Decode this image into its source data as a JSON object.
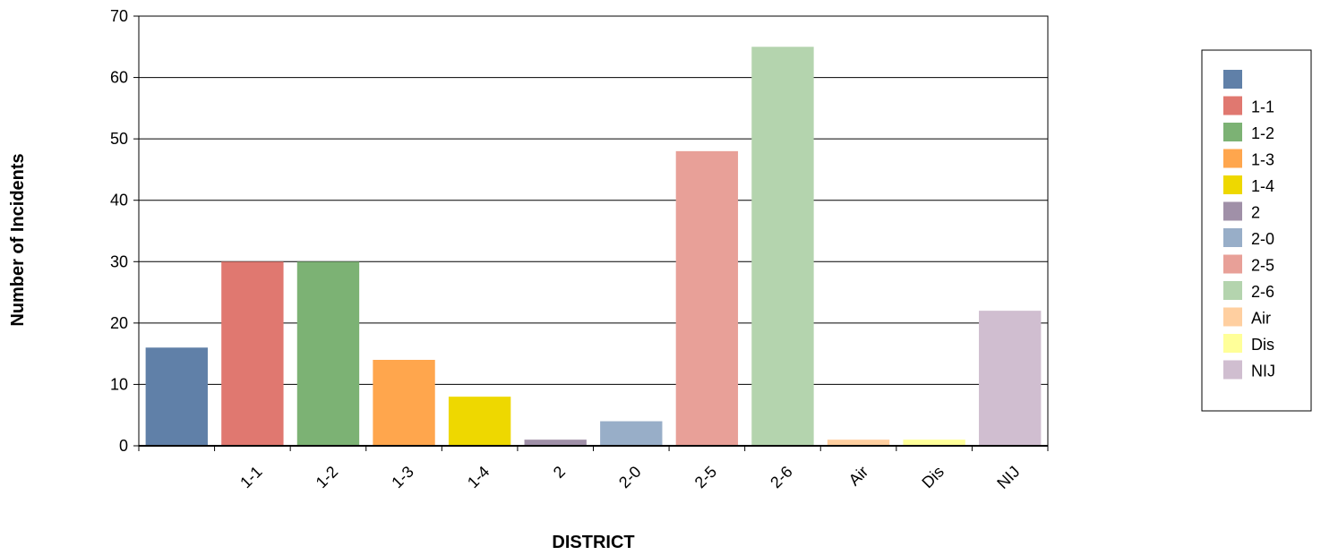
{
  "chart_data": {
    "type": "bar",
    "categories": [
      "",
      "1-1",
      "1-2",
      "1-3",
      "1-4",
      "2",
      "2-0",
      "2-5",
      "2-6",
      "Air",
      "Dis",
      "NIJ"
    ],
    "values": [
      16,
      30,
      30,
      14,
      8,
      1,
      4,
      48,
      65,
      1,
      1,
      22
    ],
    "colors": [
      "#6080a8",
      "#e07870",
      "#7cb274",
      "#ffa64d",
      "#eed800",
      "#a090a8",
      "#98aec8",
      "#e8a098",
      "#b4d4ae",
      "#ffcfa0",
      "#ffff99",
      "#d0bed0"
    ],
    "xlabel": "DISTRICT",
    "ylabel": "Number of Incidents",
    "ylim": [
      0,
      70
    ],
    "yticks": [
      0,
      10,
      20,
      30,
      40,
      50,
      60,
      70
    ],
    "grid": true,
    "legend": {
      "placement": "right",
      "entries": [
        "",
        "1-1",
        "1-2",
        "1-3",
        "1-4",
        "2",
        "2-0",
        "2-5",
        "2-6",
        "Air",
        "Dis",
        "NIJ"
      ]
    }
  }
}
